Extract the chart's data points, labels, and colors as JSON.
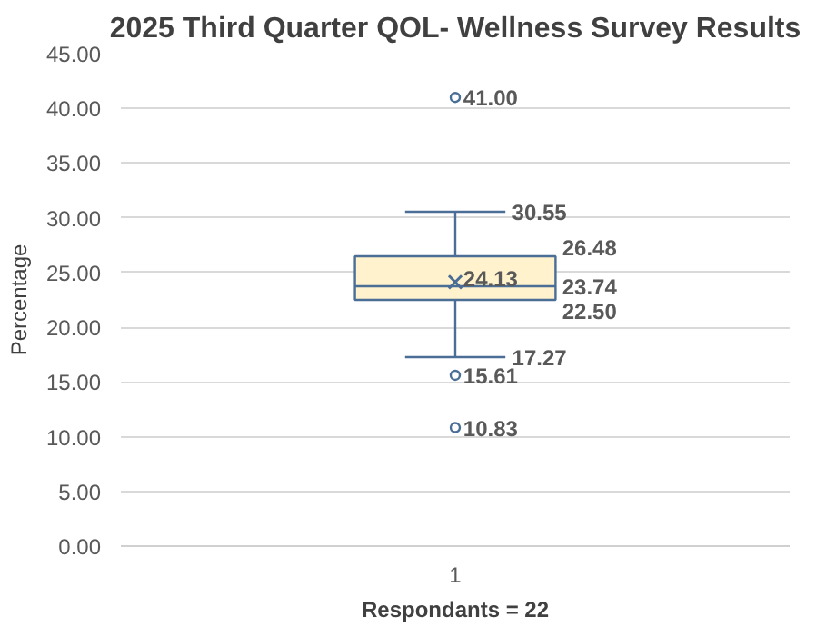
{
  "chart_data": {
    "type": "box",
    "title": "2025 Third Quarter QOL- Wellness Survey Results",
    "ylabel": "Percentage",
    "xlabel": "Respondants = 22",
    "categories": [
      "1"
    ],
    "series": [
      {
        "color": "#fff2cc",
        "boxes": [
          {
            "low": 17.27,
            "q1": 22.5,
            "median": 23.74,
            "q3": 26.48,
            "high": 30.55,
            "mean": 24.13,
            "outliers": [
              41.0,
              15.61,
              10.83
            ]
          }
        ]
      }
    ],
    "annotations": [
      "17.27",
      "22.50",
      "23.74",
      "26.48",
      "30.55",
      "24.13",
      "41.00",
      "15.61",
      "10.83"
    ],
    "ylim": [
      0,
      45
    ],
    "yticks": [
      {
        "value": 0,
        "label": "0.00"
      },
      {
        "value": 5,
        "label": "5.00"
      },
      {
        "value": 10,
        "label": "10.00"
      },
      {
        "value": 15,
        "label": "15.00"
      },
      {
        "value": 20,
        "label": "20.00"
      },
      {
        "value": 25,
        "label": "25.00"
      },
      {
        "value": 30,
        "label": "30.00"
      },
      {
        "value": 35,
        "label": "35.00"
      },
      {
        "value": 40,
        "label": "40.00"
      },
      {
        "value": 45,
        "label": "45.00"
      }
    ],
    "grid": "y"
  }
}
